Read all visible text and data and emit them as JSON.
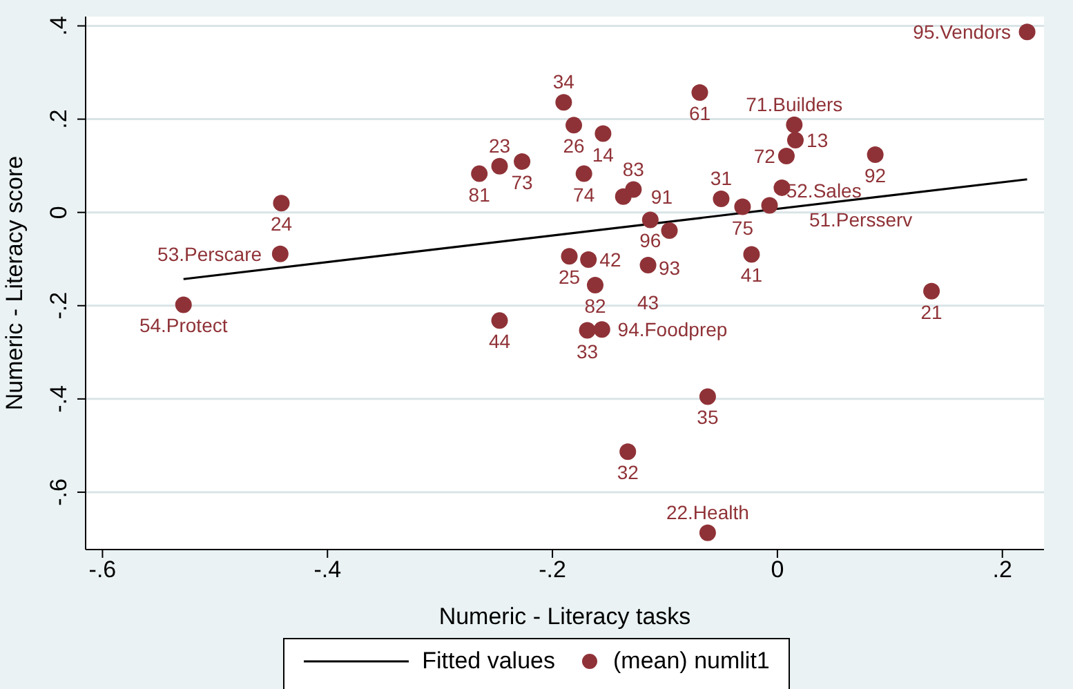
{
  "chart_data": {
    "type": "scatter",
    "xlabel": "Numeric - Literacy tasks",
    "ylabel": "Numeric - Literacy score",
    "xlim": [
      -0.615,
      0.237
    ],
    "ylim": [
      -0.723,
      0.42
    ],
    "xticks": [
      {
        "value": -0.6,
        "label": "-.6"
      },
      {
        "value": -0.4,
        "label": "-.4"
      },
      {
        "value": -0.2,
        "label": "-.2"
      },
      0,
      {
        "value": 0.2,
        "label": ".2"
      }
    ],
    "yticks": [
      {
        "value": -0.6,
        "label": "-.6"
      },
      {
        "value": -0.4,
        "label": "-.4"
      },
      {
        "value": -0.2,
        "label": "-.2"
      },
      0,
      {
        "value": 0.2,
        "label": ".2"
      },
      {
        "value": 0.4,
        "label": ".4"
      }
    ],
    "grid": "y",
    "legend": "bottom",
    "series": [
      {
        "name": "Fitted values",
        "type": "line",
        "color": "#000000",
        "marker": "none",
        "line_style": "solid",
        "x": [
          -0.528,
          0.222
        ],
        "values": [
          -0.143,
          0.071
        ]
      },
      {
        "name": "(mean) numlit1",
        "type": "scatter",
        "color": "#8f3237",
        "marker": "circle",
        "x": [
          0.222,
          -0.069,
          -0.19,
          -0.181,
          -0.155,
          -0.265,
          -0.247,
          -0.227,
          -0.172,
          -0.441,
          -0.442,
          -0.528,
          0.015,
          0.016,
          0.008,
          0.087,
          0.004,
          -0.05,
          -0.031,
          -0.007,
          -0.137,
          -0.128,
          -0.113,
          -0.096,
          -0.185,
          -0.168,
          -0.162,
          -0.115,
          -0.023,
          0.137,
          -0.169,
          -0.156,
          -0.247,
          -0.062,
          -0.133,
          -0.062
        ],
        "values": [
          0.387,
          0.257,
          0.236,
          0.187,
          0.169,
          0.083,
          0.099,
          0.109,
          0.083,
          0.02,
          -0.089,
          -0.198,
          0.188,
          0.155,
          0.121,
          0.124,
          0.053,
          0.029,
          0.012,
          0.015,
          0.034,
          0.049,
          -0.016,
          -0.039,
          -0.094,
          -0.101,
          -0.156,
          -0.113,
          -0.09,
          -0.169,
          -0.253,
          -0.251,
          -0.232,
          -0.395,
          -0.513,
          -0.687
        ]
      }
    ],
    "annotations": [
      {
        "text": "95.Vendors",
        "x": 0.222,
        "y": 0.387
      },
      {
        "text": "61",
        "x": -0.069,
        "y": 0.257
      },
      {
        "text": "34",
        "x": -0.19,
        "y": 0.236
      },
      {
        "text": "26",
        "x": -0.181,
        "y": 0.187
      },
      {
        "text": "14",
        "x": -0.155,
        "y": 0.169
      },
      {
        "text": "81",
        "x": -0.265,
        "y": 0.083
      },
      {
        "text": "23",
        "x": -0.247,
        "y": 0.099
      },
      {
        "text": "73",
        "x": -0.227,
        "y": 0.109
      },
      {
        "text": "74",
        "x": -0.172,
        "y": 0.083
      },
      {
        "text": "24",
        "x": -0.441,
        "y": 0.02
      },
      {
        "text": "53.Perscare",
        "x": -0.442,
        "y": -0.089
      },
      {
        "text": "54.Protect",
        "x": -0.528,
        "y": -0.198
      },
      {
        "text": "71.Builders",
        "x": 0.015,
        "y": 0.188
      },
      {
        "text": "13",
        "x": 0.016,
        "y": 0.155
      },
      {
        "text": "72",
        "x": 0.008,
        "y": 0.121
      },
      {
        "text": "92",
        "x": 0.087,
        "y": 0.124
      },
      {
        "text": "51.Persserv",
        "x": 0.004,
        "y": 0.053
      },
      {
        "text": "31",
        "x": -0.05,
        "y": 0.029
      },
      {
        "text": "75",
        "x": -0.031,
        "y": 0.012
      },
      {
        "text": "52.Sales",
        "x": -0.007,
        "y": 0.015
      },
      {
        "text": "91",
        "x": -0.137,
        "y": 0.034
      },
      {
        "text": "83",
        "x": -0.128,
        "y": 0.049
      },
      {
        "text": "96",
        "x": -0.113,
        "y": -0.016
      },
      {
        "text": "93",
        "x": -0.096,
        "y": -0.039
      },
      {
        "text": "25",
        "x": -0.185,
        "y": -0.094
      },
      {
        "text": "42",
        "x": -0.168,
        "y": -0.101
      },
      {
        "text": "82",
        "x": -0.162,
        "y": -0.156
      },
      {
        "text": "43",
        "x": -0.115,
        "y": -0.113
      },
      {
        "text": "41",
        "x": -0.023,
        "y": -0.09
      },
      {
        "text": "21",
        "x": 0.137,
        "y": -0.169
      },
      {
        "text": "33",
        "x": -0.169,
        "y": -0.253
      },
      {
        "text": "94.Foodprep",
        "x": -0.156,
        "y": -0.251
      },
      {
        "text": "44",
        "x": -0.247,
        "y": -0.232
      },
      {
        "text": "35",
        "x": -0.062,
        "y": -0.395
      },
      {
        "text": "32",
        "x": -0.133,
        "y": -0.513
      },
      {
        "text": "22.Health",
        "x": -0.062,
        "y": -0.687
      }
    ]
  }
}
